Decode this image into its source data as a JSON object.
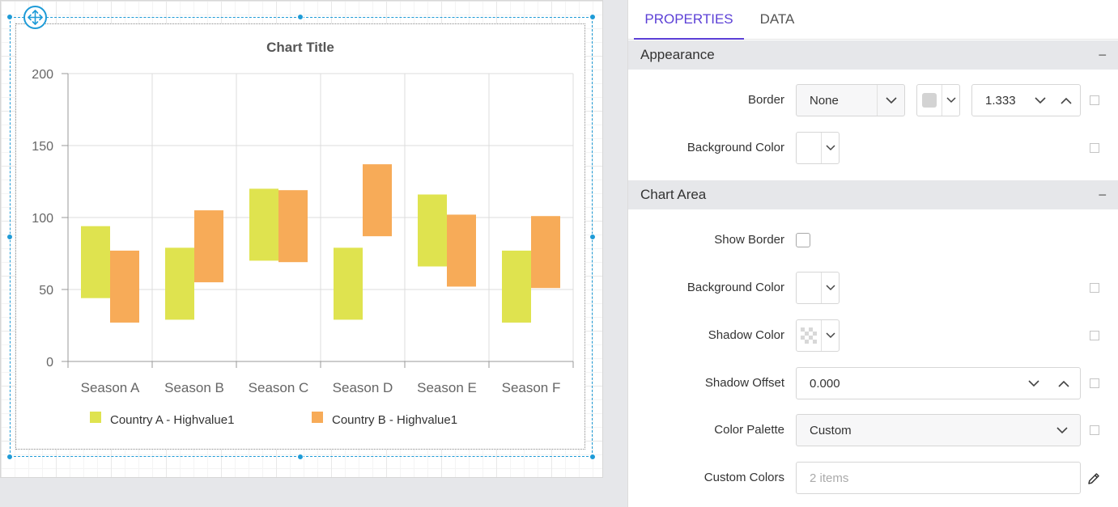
{
  "chart_data": {
    "type": "range-column",
    "title": "Chart Title",
    "categories": [
      "Season A",
      "Season B",
      "Season C",
      "Season D",
      "Season E",
      "Season F"
    ],
    "ylim": [
      0,
      200
    ],
    "yticks": [
      "0",
      "50",
      "100",
      "150",
      "200"
    ],
    "grid": true,
    "legend_position": "bottom",
    "series": [
      {
        "name": "Country A - Highvalue1",
        "color": "#dfe34f",
        "low": [
          44,
          29,
          70,
          29,
          66,
          27
        ],
        "high": [
          94,
          79,
          120,
          79,
          116,
          77
        ]
      },
      {
        "name": "Country B - Highvalue1",
        "color": "#f7ab58",
        "low": [
          27,
          55,
          69,
          87,
          52,
          51
        ],
        "high": [
          77,
          105,
          119,
          137,
          102,
          101
        ]
      }
    ]
  },
  "panel": {
    "tabs": [
      {
        "label": "PROPERTIES",
        "active": true
      },
      {
        "label": "DATA",
        "active": false
      }
    ],
    "appearance": {
      "header": "Appearance",
      "collapse": "−",
      "border_label": "Border",
      "border_value": "None",
      "border_width": "1.333",
      "bg_label": "Background Color"
    },
    "chart_area": {
      "header": "Chart Area",
      "collapse": "−",
      "show_border_label": "Show Border",
      "bg_label": "Background Color",
      "shadow_color_label": "Shadow Color",
      "shadow_offset_label": "Shadow Offset",
      "shadow_offset_value": "0.000",
      "palette_label": "Color Palette",
      "palette_value": "Custom",
      "custom_colors_label": "Custom Colors",
      "custom_colors_placeholder": "2 items"
    }
  }
}
